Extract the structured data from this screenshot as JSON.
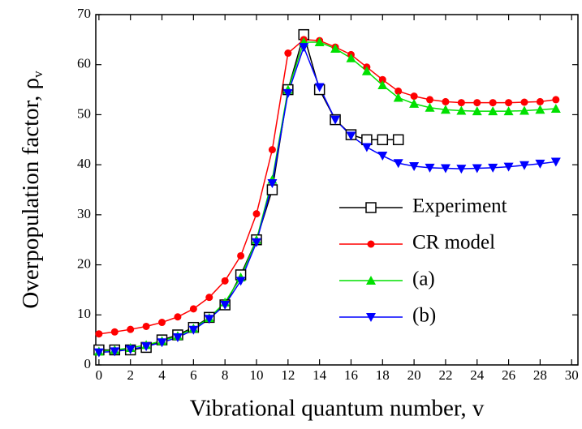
{
  "chart_data": {
    "type": "line",
    "x_label": "Vibrational quantum number, v",
    "y_label": "Overpopulation factor, ρ",
    "y_label_sub": "v",
    "xlim": [
      -0.2,
      30.4
    ],
    "ylim": [
      0,
      70
    ],
    "xticks": [
      0,
      2,
      4,
      6,
      8,
      10,
      12,
      14,
      16,
      18,
      20,
      22,
      24,
      26,
      28,
      30
    ],
    "yticks": [
      0,
      10,
      20,
      30,
      40,
      50,
      60,
      70
    ],
    "series": [
      {
        "name": "Experiment",
        "color": "#000000",
        "marker": "square-open",
        "x": [
          0,
          1,
          2,
          3,
          4,
          5,
          6,
          7,
          8,
          9,
          10,
          11,
          12,
          13,
          14,
          15,
          16,
          17,
          18,
          19
        ],
        "values": [
          3,
          3,
          3,
          3.5,
          5,
          6,
          7.5,
          9.5,
          12,
          18,
          25,
          35,
          55,
          66,
          55,
          49,
          46,
          45,
          45,
          45
        ]
      },
      {
        "name": "CR model",
        "color": "#ff0000",
        "marker": "circle",
        "x": [
          0,
          1,
          2,
          3,
          4,
          5,
          6,
          7,
          8,
          9,
          10,
          11,
          12,
          13,
          14,
          15,
          16,
          17,
          18,
          19,
          20,
          21,
          22,
          23,
          24,
          25,
          26,
          27,
          28,
          29
        ],
        "values": [
          6.2,
          6.6,
          7.1,
          7.7,
          8.5,
          9.6,
          11.2,
          13.5,
          16.8,
          21.8,
          30.2,
          43,
          62.3,
          65,
          64.8,
          63.5,
          62,
          59.5,
          57,
          54.7,
          53.7,
          53,
          52.6,
          52.4,
          52.4,
          52.4,
          52.4,
          52.5,
          52.6,
          53
        ]
      },
      {
        "name": "(a)",
        "color": "#00e000",
        "marker": "triangle-up",
        "x": [
          0,
          1,
          2,
          3,
          4,
          5,
          6,
          7,
          8,
          9,
          10,
          11,
          12,
          13,
          14,
          15,
          16,
          17,
          18,
          19,
          20,
          21,
          22,
          23,
          24,
          25,
          26,
          27,
          28,
          29
        ],
        "values": [
          2.7,
          3,
          3.4,
          4,
          4.8,
          5.8,
          7.3,
          9.4,
          12.5,
          17.5,
          25,
          37,
          55,
          64.5,
          64.5,
          63.2,
          61.3,
          58.7,
          55.9,
          53.4,
          52.2,
          51.4,
          51,
          50.8,
          50.7,
          50.7,
          50.7,
          50.8,
          51,
          51.2
        ]
      },
      {
        "name": "(b)",
        "color": "#0000ff",
        "marker": "triangle-down",
        "x": [
          0,
          1,
          2,
          3,
          4,
          5,
          6,
          7,
          8,
          9,
          10,
          11,
          12,
          13,
          14,
          15,
          16,
          17,
          18,
          19,
          20,
          21,
          22,
          23,
          24,
          25,
          26,
          27,
          28,
          29
        ],
        "values": [
          2.5,
          2.7,
          3.1,
          3.7,
          4.5,
          5.5,
          7,
          9.2,
          12,
          16.8,
          24.5,
          36.3,
          54.3,
          63.5,
          55.5,
          49,
          45.8,
          43.5,
          41.8,
          40.3,
          39.7,
          39.4,
          39.3,
          39.2,
          39.3,
          39.4,
          39.6,
          39.9,
          40.2,
          40.6
        ]
      }
    ]
  }
}
